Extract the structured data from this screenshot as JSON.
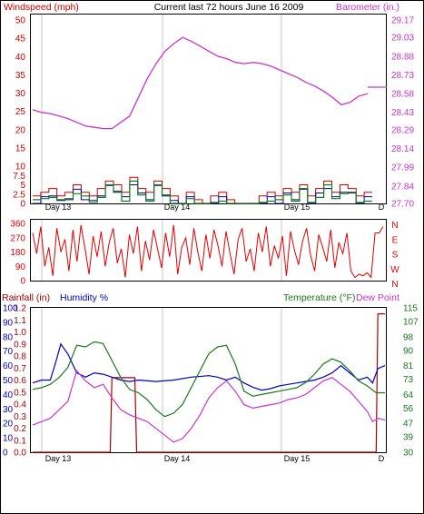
{
  "header": {
    "left_label": "Windspeed (mph)",
    "title": "Current last 72 hours June 16 2009",
    "right_label": "Barometer (in.)"
  },
  "colors": {
    "frame": "#000000",
    "grid": "#c8c8c8",
    "wind": "#cc0000",
    "gust": "#1a7a1a",
    "wind_avg": "#0000aa",
    "barometer": "#cc33cc",
    "direction": "#e00000",
    "rain": "#aa0000",
    "humidity": "#0000cc",
    "temperature": "#1a7a1a",
    "dewpoint": "#cc33cc",
    "bg": "#ffffff"
  },
  "chart_data": [
    {
      "type": "line",
      "title": "Current last 72 hours June 16 2009",
      "ylabel": "Windspeed (mph)",
      "y2label": "Barometer (in.)",
      "ylim": [
        0,
        50
      ],
      "y2lim": [
        27.7,
        29.17
      ],
      "yticks": [
        "0",
        "2.5",
        "5",
        "7.5",
        "10",
        "15",
        "20",
        "25",
        "30",
        "35",
        "40",
        "45",
        "50"
      ],
      "y2ticks": [
        "27.70",
        "27.84",
        "27.99",
        "28.14",
        "28.29",
        "28.43",
        "28.58",
        "28.73",
        "28.88",
        "29.03",
        "29.17"
      ],
      "x_labels": [
        "Day 13",
        "Day 14",
        "Day 15",
        "D"
      ],
      "grid": "vertical day separators",
      "series": [
        {
          "name": "Barometer (in.)",
          "axis": "right",
          "color": "#cc33cc",
          "values": [
            28.45,
            28.43,
            28.42,
            28.4,
            28.38,
            28.35,
            28.32,
            28.31,
            28.3,
            28.3,
            28.35,
            28.4,
            28.55,
            28.7,
            28.82,
            28.92,
            28.98,
            29.03,
            29.0,
            28.96,
            28.92,
            28.88,
            28.86,
            28.83,
            28.82,
            28.83,
            28.82,
            28.8,
            28.77,
            28.74,
            28.71,
            28.67,
            28.64,
            28.6,
            28.55,
            28.49,
            28.51,
            28.56,
            28.58
          ]
        },
        {
          "name": "Windspeed (mph)",
          "axis": "left",
          "color": "#cc0000",
          "values": [
            2,
            3,
            4,
            2,
            3,
            5,
            3,
            2,
            4,
            6,
            5,
            3,
            7,
            4,
            3,
            6,
            4,
            2,
            0,
            3,
            1,
            0,
            2,
            3,
            1,
            0,
            0,
            0,
            2,
            3,
            2,
            4,
            3,
            5,
            2,
            4,
            6,
            3,
            5,
            4,
            2,
            3
          ]
        }
      ]
    },
    {
      "type": "line",
      "title": "",
      "ylabel": "",
      "ylim": [
        0,
        360
      ],
      "yticks": [
        "0",
        "90",
        "180",
        "270",
        "360"
      ],
      "y2ticks": [
        "N",
        "W",
        "S",
        "E",
        "N"
      ],
      "series": [
        {
          "name": "",
          "color": "#e00000",
          "values": [
            300,
            170,
            340,
            90,
            210,
            30,
            330,
            180,
            260,
            60,
            320,
            120,
            350,
            200,
            40,
            280,
            150,
            310,
            90,
            240,
            330,
            110,
            200,
            20,
            290,
            170,
            340,
            60,
            250,
            130,
            320,
            200,
            80,
            300,
            150,
            350,
            40,
            210,
            270,
            100,
            330,
            180,
            60,
            290,
            140,
            320,
            220,
            90,
            310,
            170,
            40,
            260,
            330,
            120,
            200,
            60,
            300,
            180,
            340,
            90,
            220,
            140,
            280,
            30,
            310,
            190,
            100,
            250,
            330,
            160,
            60,
            290,
            210,
            120,
            320,
            80,
            240,
            170,
            300,
            60,
            20,
            40,
            30,
            50,
            20,
            300,
            300,
            340
          ]
        }
      ]
    },
    {
      "type": "line",
      "title": "",
      "ylabel": "Rainfall (in)",
      "ylabel2": "Humidity %",
      "y2label": "Temperature (°F)",
      "y2label2": "Dew Point",
      "x_labels": [
        "Day 13",
        "Day 14",
        "Day 15",
        "D"
      ],
      "rain_ticks": [
        "0.0",
        "0.1",
        "0.2",
        "0.3",
        "0.4",
        "0.5",
        "0.6",
        "0.7",
        "0.8",
        "0.9",
        "1.0",
        "1.1",
        "1.2"
      ],
      "humidity_ticks": [
        "0",
        "10",
        "20",
        "30",
        "40",
        "50",
        "60",
        "70",
        "80",
        "90",
        "100"
      ],
      "temp_ticks": [
        "30",
        "39",
        "47",
        "56",
        "64",
        "73",
        "81",
        "90",
        "98",
        "107",
        "115"
      ],
      "series": [
        {
          "name": "Rainfall (in)",
          "color": "#aa0000",
          "axis": "rain",
          "x": [
            0,
            0.44,
            0.45,
            0.58,
            0.59,
            1.68,
            1.69,
            1.95,
            1.96,
            2.0
          ],
          "values": [
            0,
            0,
            0.62,
            0.62,
            0,
            0,
            0,
            0,
            1.15,
            1.15
          ]
        },
        {
          "name": "Humidity %",
          "color": "#0000cc",
          "axis": "humidity",
          "x": [
            0,
            0.05,
            0.1,
            0.13,
            0.16,
            0.2,
            0.25,
            0.3,
            0.35,
            0.4,
            0.45,
            0.5,
            0.55,
            0.6,
            0.7,
            0.8,
            0.9,
            1.0,
            1.05,
            1.1,
            1.15,
            1.2,
            1.25,
            1.3,
            1.35,
            1.4,
            1.45,
            1.5,
            1.55,
            1.6,
            1.65,
            1.7,
            1.75,
            1.8,
            1.85,
            1.9,
            1.93,
            1.96,
            2.0
          ],
          "values": [
            48,
            50,
            50,
            62,
            75,
            68,
            55,
            52,
            55,
            54,
            52,
            50,
            49,
            50,
            49,
            50,
            52,
            53,
            52,
            50,
            52,
            48,
            45,
            43,
            44,
            46,
            47,
            48,
            49,
            50,
            52,
            55,
            60,
            55,
            50,
            52,
            48,
            58,
            60
          ]
        },
        {
          "name": "Temperature (°F)",
          "color": "#1a7a1a",
          "axis": "temp",
          "x": [
            0,
            0.05,
            0.1,
            0.15,
            0.2,
            0.25,
            0.3,
            0.35,
            0.4,
            0.45,
            0.5,
            0.55,
            0.6,
            0.65,
            0.7,
            0.75,
            0.8,
            0.85,
            0.9,
            0.95,
            1.0,
            1.05,
            1.1,
            1.15,
            1.2,
            1.25,
            1.3,
            1.35,
            1.4,
            1.45,
            1.5,
            1.55,
            1.6,
            1.65,
            1.7,
            1.75,
            1.8,
            1.85,
            1.9,
            1.95,
            2.0
          ],
          "values": [
            67,
            68,
            70,
            74,
            80,
            93,
            92,
            95,
            94,
            84,
            74,
            67,
            65,
            61,
            55,
            51,
            53,
            58,
            68,
            78,
            88,
            92,
            93,
            82,
            66,
            63,
            64,
            65,
            66,
            67,
            68,
            71,
            76,
            82,
            85,
            83,
            78,
            72,
            69,
            65,
            65
          ]
        },
        {
          "name": "Dew Point",
          "color": "#cc33cc",
          "axis": "temp",
          "x": [
            0,
            0.05,
            0.1,
            0.15,
            0.2,
            0.25,
            0.3,
            0.35,
            0.4,
            0.45,
            0.5,
            0.55,
            0.6,
            0.65,
            0.7,
            0.75,
            0.8,
            0.85,
            0.9,
            0.95,
            1.0,
            1.05,
            1.1,
            1.15,
            1.2,
            1.25,
            1.3,
            1.35,
            1.4,
            1.45,
            1.5,
            1.55,
            1.6,
            1.65,
            1.7,
            1.75,
            1.8,
            1.85,
            1.9,
            1.93,
            1.96,
            2.0
          ],
          "values": [
            46,
            48,
            50,
            55,
            60,
            78,
            72,
            68,
            70,
            62,
            55,
            52,
            50,
            48,
            44,
            40,
            36,
            38,
            44,
            52,
            62,
            68,
            72,
            66,
            58,
            56,
            57,
            58,
            59,
            61,
            62,
            64,
            68,
            72,
            74,
            70,
            66,
            60,
            54,
            48,
            50,
            49
          ]
        }
      ]
    }
  ]
}
